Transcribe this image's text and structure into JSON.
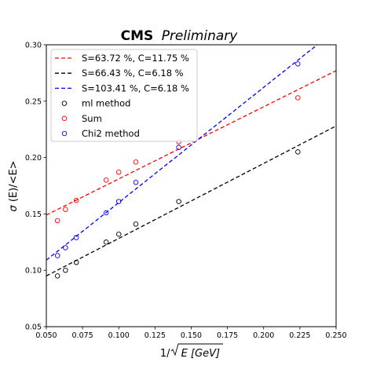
{
  "chart_data": {
    "type": "scatter",
    "title_bold": "CMS",
    "title_italic": "Preliminary",
    "xlabel_prefix": "1/",
    "xlabel_radicand": "E [GeV]",
    "ylabel_sigma": "σ",
    "ylabel_rest": "(E)/<E>",
    "xlim": [
      0.05,
      0.25
    ],
    "ylim": [
      0.05,
      0.3
    ],
    "xticks": [
      "0.050",
      "0.075",
      "0.100",
      "0.125",
      "0.150",
      "0.175",
      "0.200",
      "0.225",
      "0.250"
    ],
    "yticks": [
      "0.05",
      "0.10",
      "0.15",
      "0.20",
      "0.25",
      "0.30"
    ],
    "grid": false,
    "legend_position": "top-left",
    "lines": [
      {
        "name": "S=63.72 %, C=11.75 %",
        "color": "#ff0000",
        "style": "dashed",
        "x": [
          0.05,
          0.25
        ],
        "y": [
          0.149,
          0.277
        ]
      },
      {
        "name": "S=66.43 %, C=6.18 %",
        "color": "#000000",
        "style": "dashed",
        "x": [
          0.05,
          0.25
        ],
        "y": [
          0.095,
          0.228
        ]
      },
      {
        "name": "S=103.41 %, C=6.18 %",
        "color": "#0000ff",
        "style": "dashed",
        "x": [
          0.05,
          0.237
        ],
        "y": [
          0.109,
          0.3
        ]
      }
    ],
    "series": [
      {
        "name": "ml method",
        "color": "#000000",
        "x": [
          0.0577,
          0.0632,
          0.0707,
          0.0913,
          0.1,
          0.1118,
          0.1414,
          0.2236
        ],
        "y": [
          0.095,
          0.1,
          0.107,
          0.125,
          0.132,
          0.141,
          0.161,
          0.205
        ]
      },
      {
        "name": "Sum",
        "color": "#ff0000",
        "x": [
          0.0577,
          0.0632,
          0.0707,
          0.0913,
          0.1,
          0.1118,
          0.1414,
          0.2236
        ],
        "y": [
          0.144,
          0.154,
          0.162,
          0.18,
          0.187,
          0.196,
          0.214,
          0.253
        ]
      },
      {
        "name": "Chi2 method",
        "color": "#0000ff",
        "x": [
          0.0577,
          0.0632,
          0.0707,
          0.0913,
          0.1,
          0.1118,
          0.1414,
          0.2236
        ],
        "y": [
          0.113,
          0.12,
          0.129,
          0.151,
          0.161,
          0.178,
          0.209,
          0.283
        ]
      }
    ]
  }
}
